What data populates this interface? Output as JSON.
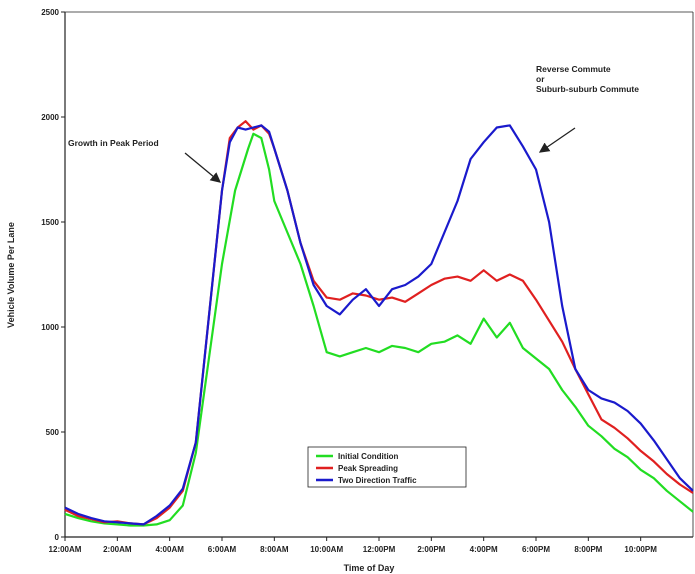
{
  "chart_data": {
    "type": "line",
    "title": "",
    "xlabel": "Time of Day",
    "ylabel": "Vehicle Volume Per Lane",
    "ylim": [
      0,
      2500
    ],
    "xlim": [
      0,
      24
    ],
    "y_ticks": [
      "0",
      "500",
      "1000",
      "1500",
      "2000",
      "2500"
    ],
    "y_tick_values": [
      0,
      500,
      1000,
      1500,
      2000,
      2500
    ],
    "x_ticks": [
      "12:00AM",
      "2:00AM",
      "4:00AM",
      "6:00AM",
      "8:00AM",
      "10:00AM",
      "12:00PM",
      "2:00PM",
      "4:00PM",
      "6:00PM",
      "8:00PM",
      "10:00PM"
    ],
    "x_tick_values": [
      0,
      2,
      4,
      6,
      8,
      10,
      12,
      14,
      16,
      18,
      20,
      22
    ],
    "grid": false,
    "legend_position": "bottom-center",
    "series": [
      {
        "name": "Initial Condition",
        "color": "#22dd22",
        "x": [
          0,
          0.5,
          1,
          1.5,
          2,
          2.5,
          3,
          3.5,
          4,
          4.5,
          5,
          5.5,
          6,
          6.5,
          7,
          7.2,
          7.5,
          7.8,
          8,
          8.5,
          9,
          9.5,
          10,
          10.5,
          11,
          11.5,
          12,
          12.5,
          13,
          13.5,
          14,
          14.5,
          15,
          15.5,
          16,
          16.5,
          17,
          17.5,
          18,
          18.5,
          19,
          19.5,
          20,
          20.5,
          21,
          21.5,
          22,
          22.5,
          23,
          23.5,
          24
        ],
        "values": [
          110,
          90,
          75,
          65,
          60,
          55,
          55,
          60,
          80,
          150,
          400,
          850,
          1300,
          1650,
          1850,
          1920,
          1900,
          1750,
          1600,
          1450,
          1300,
          1100,
          880,
          860,
          880,
          900,
          880,
          910,
          900,
          880,
          920,
          930,
          960,
          920,
          1040,
          950,
          1020,
          900,
          850,
          800,
          700,
          620,
          530,
          480,
          420,
          380,
          320,
          280,
          220,
          170,
          120
        ]
      },
      {
        "name": "Peak Spreading",
        "color": "#e02020",
        "x": [
          0,
          0.5,
          1,
          1.5,
          2,
          2.5,
          3,
          3.5,
          4,
          4.5,
          5,
          5.5,
          6,
          6.3,
          6.6,
          6.9,
          7.2,
          7.5,
          7.8,
          8,
          8.5,
          9,
          9.5,
          10,
          10.5,
          11,
          11.5,
          12,
          12.5,
          13,
          13.5,
          14,
          14.5,
          15,
          15.5,
          16,
          16.5,
          17,
          17.5,
          18,
          18.5,
          19,
          19.5,
          20,
          20.5,
          21,
          21.5,
          22,
          22.5,
          23,
          23.5,
          24
        ],
        "values": [
          130,
          100,
          85,
          70,
          75,
          65,
          60,
          90,
          140,
          220,
          450,
          1050,
          1650,
          1900,
          1950,
          1980,
          1940,
          1960,
          1920,
          1850,
          1650,
          1400,
          1220,
          1140,
          1130,
          1160,
          1150,
          1130,
          1140,
          1120,
          1160,
          1200,
          1230,
          1240,
          1220,
          1270,
          1220,
          1250,
          1220,
          1130,
          1030,
          930,
          800,
          680,
          560,
          520,
          470,
          410,
          360,
          300,
          250,
          210
        ]
      },
      {
        "name": "Two Direction Traffic",
        "color": "#1a1acc",
        "x": [
          0,
          0.5,
          1,
          1.5,
          2,
          2.5,
          3,
          3.5,
          4,
          4.5,
          5,
          5.5,
          6,
          6.3,
          6.6,
          6.9,
          7.2,
          7.5,
          7.8,
          8,
          8.5,
          9,
          9.5,
          10,
          10.5,
          11,
          11.5,
          12,
          12.5,
          13,
          13.5,
          14,
          14.5,
          15,
          15.5,
          16,
          16.5,
          17,
          17.5,
          18,
          18.5,
          19,
          19.5,
          20,
          20.5,
          21,
          21.5,
          22,
          22.5,
          23,
          23.5,
          24
        ],
        "values": [
          140,
          110,
          90,
          75,
          70,
          65,
          60,
          100,
          150,
          230,
          450,
          1050,
          1650,
          1880,
          1950,
          1940,
          1950,
          1960,
          1930,
          1850,
          1650,
          1400,
          1200,
          1100,
          1060,
          1130,
          1180,
          1100,
          1180,
          1200,
          1240,
          1300,
          1450,
          1600,
          1800,
          1880,
          1950,
          1960,
          1860,
          1750,
          1500,
          1100,
          800,
          700,
          660,
          640,
          600,
          540,
          460,
          370,
          280,
          220
        ]
      }
    ],
    "annotations": [
      {
        "text": "Growth in Peak Period",
        "x": 6.4,
        "y": 1580
      },
      {
        "text": "Reverse Commute\nor\nSuburb-suburb Commute",
        "x": 18.2,
        "y": 1830
      }
    ]
  }
}
